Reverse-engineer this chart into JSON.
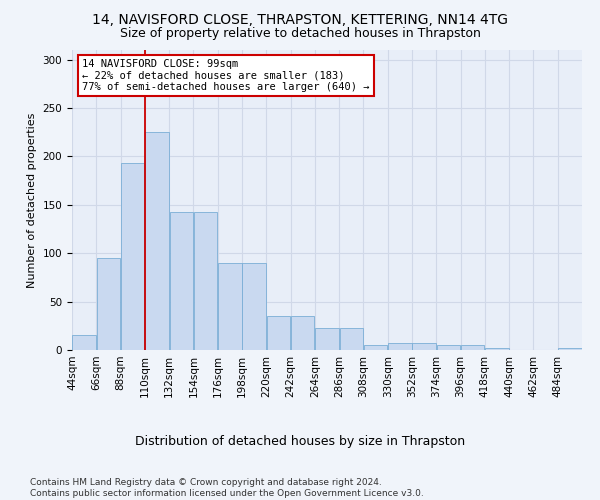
{
  "title1": "14, NAVISFORD CLOSE, THRAPSTON, KETTERING, NN14 4TG",
  "title2": "Size of property relative to detached houses in Thrapston",
  "xlabel": "Distribution of detached houses by size in Thrapston",
  "ylabel": "Number of detached properties",
  "bin_labels": [
    "44sqm",
    "66sqm",
    "88sqm",
    "110sqm",
    "132sqm",
    "154sqm",
    "176sqm",
    "198sqm",
    "220sqm",
    "242sqm",
    "264sqm",
    "286sqm",
    "308sqm",
    "330sqm",
    "352sqm",
    "374sqm",
    "396sqm",
    "418sqm",
    "440sqm",
    "462sqm",
    "484sqm"
  ],
  "bar_heights": [
    15,
    95,
    193,
    225,
    143,
    143,
    90,
    90,
    35,
    35,
    23,
    23,
    5,
    7,
    7,
    5,
    5,
    2,
    0,
    0,
    2
  ],
  "bar_color": "#c9d9f0",
  "bar_edge_color": "#7aaed6",
  "annotation_text": "14 NAVISFORD CLOSE: 99sqm\n← 22% of detached houses are smaller (183)\n77% of semi-detached houses are larger (640) →",
  "annotation_box_color": "#ffffff",
  "annotation_box_edge_color": "#cc0000",
  "vline_x_bin_index": 2.5,
  "vline_color": "#cc0000",
  "ylim": [
    0,
    310
  ],
  "yticks": [
    0,
    50,
    100,
    150,
    200,
    250,
    300
  ],
  "grid_color": "#d0d8e8",
  "plot_bg_color": "#e8eef8",
  "fig_bg_color": "#f0f4fa",
  "footnote": "Contains HM Land Registry data © Crown copyright and database right 2024.\nContains public sector information licensed under the Open Government Licence v3.0.",
  "title1_fontsize": 10,
  "title2_fontsize": 9,
  "xlabel_fontsize": 9,
  "ylabel_fontsize": 8,
  "tick_fontsize": 7.5,
  "footnote_fontsize": 6.5,
  "annotation_fontsize": 7.5
}
